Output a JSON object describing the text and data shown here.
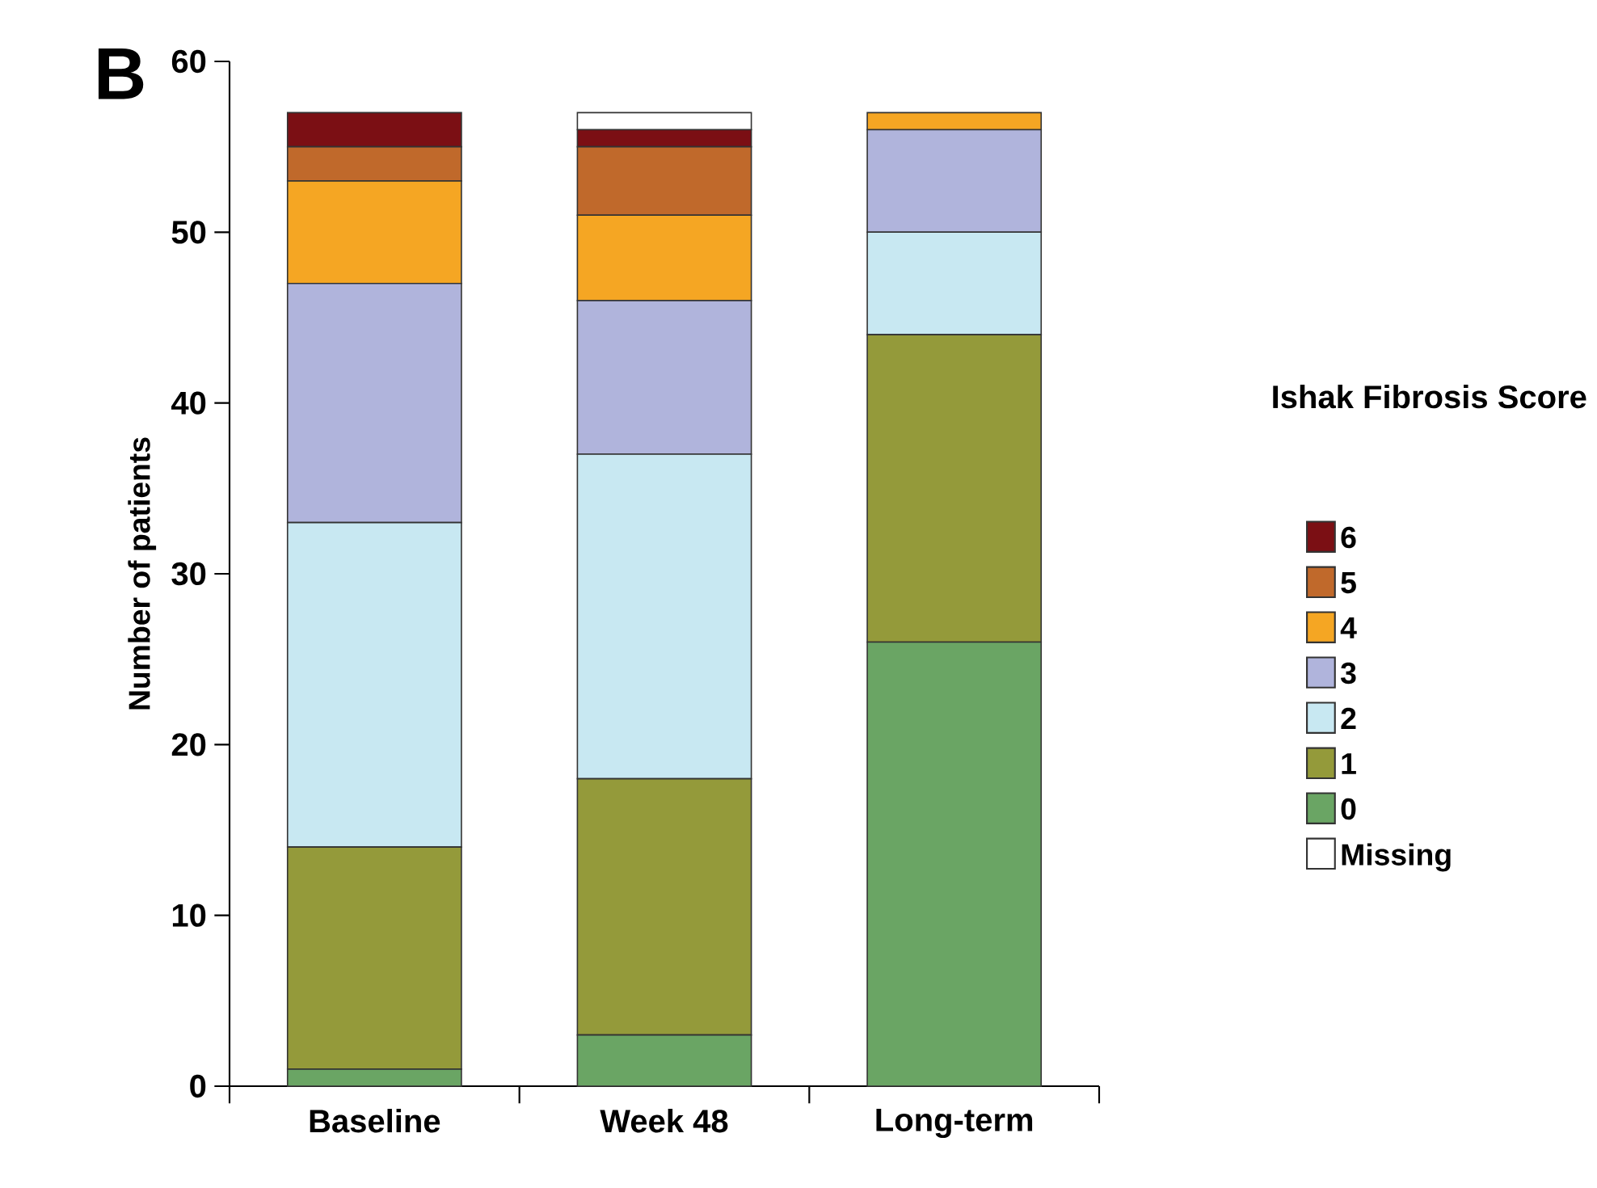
{
  "chart_data": {
    "type": "bar",
    "stacked": true,
    "categories": [
      "Baseline",
      "Week 48",
      "Long-term"
    ],
    "ylabel": "Number of patients",
    "legend_title": "Ishak Fibrosis Score",
    "annotations": [
      "B"
    ],
    "ylim": [
      0,
      60
    ],
    "yticks": [
      0,
      10,
      20,
      30,
      40,
      50,
      60
    ],
    "legend": "right",
    "series": [
      {
        "name": "0",
        "color": "#6aa564",
        "values": [
          1,
          3,
          26
        ]
      },
      {
        "name": "1",
        "color": "#949a3a",
        "values": [
          13,
          15,
          18
        ]
      },
      {
        "name": "2",
        "color": "#c8e8f2",
        "values": [
          19,
          19,
          6
        ]
      },
      {
        "name": "3",
        "color": "#b0b4dc",
        "values": [
          14,
          9,
          6
        ]
      },
      {
        "name": "4",
        "color": "#f5a623",
        "values": [
          6,
          5,
          1
        ]
      },
      {
        "name": "5",
        "color": "#c0692b",
        "values": [
          2,
          4,
          0
        ]
      },
      {
        "name": "6",
        "color": "#7b0f14",
        "values": [
          2,
          1,
          0
        ]
      },
      {
        "name": "Missing",
        "color": "#ffffff",
        "values": [
          0,
          1,
          0
        ]
      }
    ]
  }
}
